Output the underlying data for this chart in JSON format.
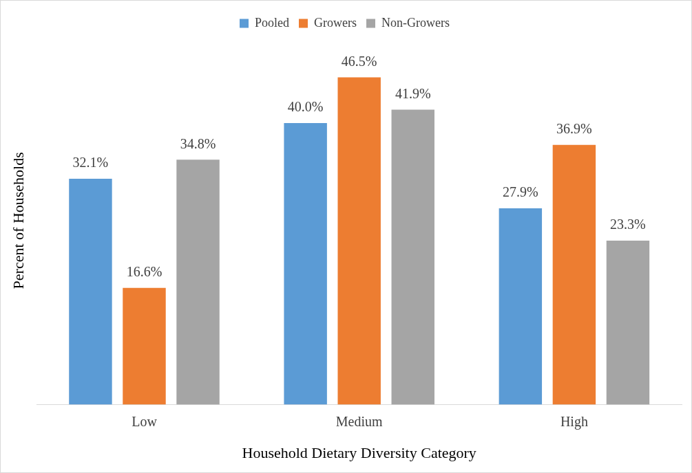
{
  "chart_data": {
    "type": "bar",
    "xlabel": "Household Dietary Diversity Category",
    "ylabel": "Percent of Households",
    "categories": [
      "Low",
      "Medium",
      "High"
    ],
    "legend": "top",
    "grid": false,
    "series": [
      {
        "name": "Pooled",
        "color": "#5b9bd5",
        "values": [
          32.1,
          40.0,
          27.9
        ],
        "value_labels": [
          "32.1%",
          "40.0%",
          "27.9%"
        ]
      },
      {
        "name": "Growers",
        "color": "#ed7d31",
        "values": [
          16.6,
          46.5,
          36.9
        ],
        "value_labels": [
          "16.6%",
          "46.5%",
          "36.9%"
        ]
      },
      {
        "name": "Non-Growers",
        "color": "#a5a5a5",
        "values": [
          34.8,
          41.9,
          23.3
        ],
        "value_labels": [
          "34.8%",
          "41.9%",
          "23.3%"
        ]
      }
    ]
  }
}
